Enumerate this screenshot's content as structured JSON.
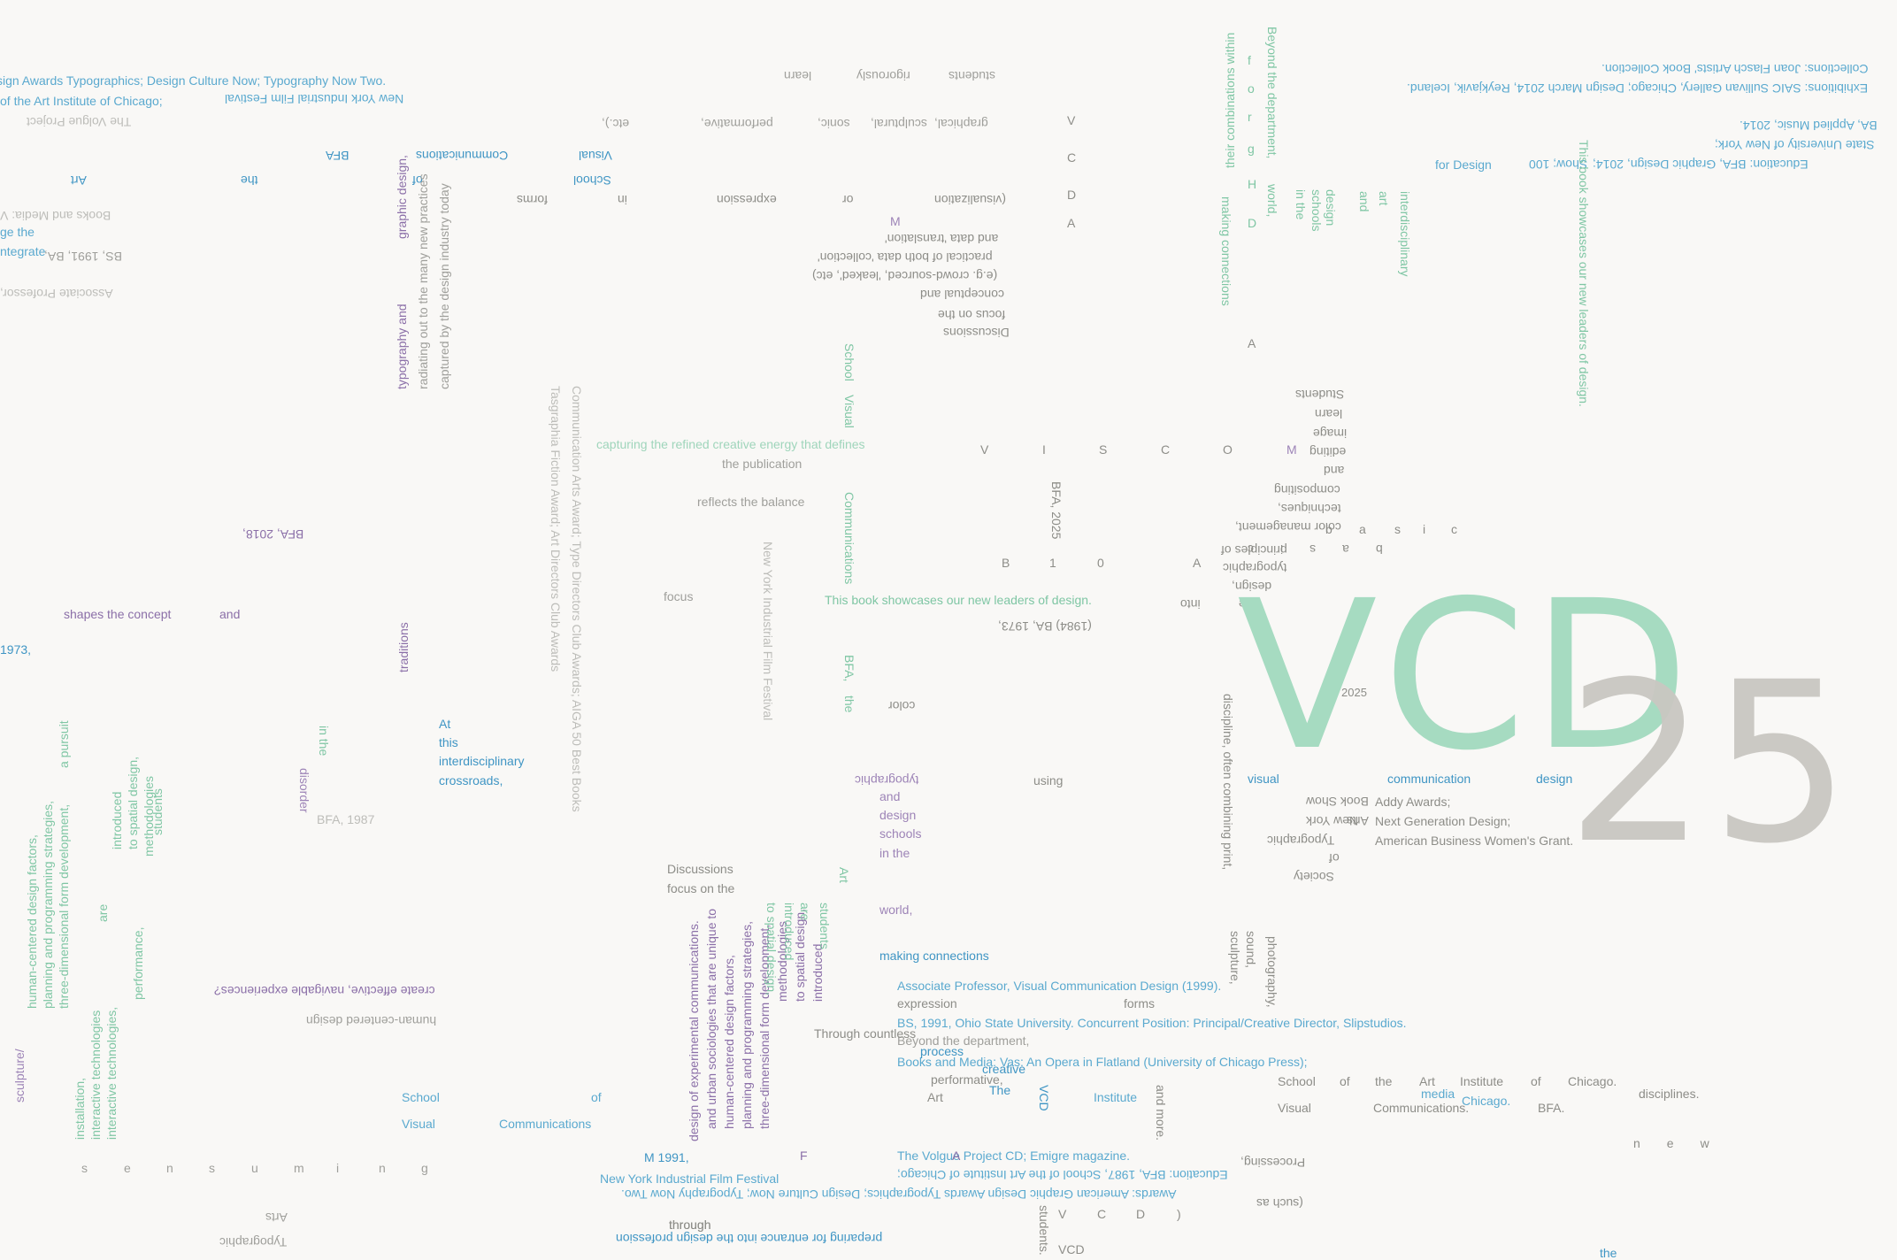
{
  "logo": {
    "main": "VCD",
    "number": "25",
    "year": "2025"
  },
  "colors": {
    "background": "#f9f8f6",
    "blue": "#5aa9cf",
    "green": "#9fd5bb",
    "purple": "#9d84b7",
    "gray": "#bdbdb9"
  },
  "texts": [
    "sign Awards Typographics; Design Culture Now; Typography Now Two.",
    "of the Art Institute of Chicago;",
    "New York Industrial Film Festival",
    "ge the",
    "ntegrate",
    "BS, 1991, BA,",
    "Associate Professor,",
    "Books and Media: V",
    "The Volgue Project",
    "students",
    "rigorously",
    "learn",
    "graphical,",
    "sculptural,",
    "sonic,",
    "performative,",
    "etc.),",
    "Visual",
    "Communications",
    "BFA",
    "Art",
    "the",
    "School",
    "of",
    "in",
    "forms",
    "expression",
    "or",
    "(visualization",
    "(e.g. crowd-sourced, 'leaked', etc)",
    "and data 'translation'",
    "practical of both data 'collection'",
    "conceptual and",
    "focus on the",
    "Discussions",
    "M",
    "Collections: Joan Flasch Artists' Book Collection.",
    "Exhibitions: SAIC Sullivan Gallery, Chicago; Design March 2014, Reykjavik, Iceland.",
    "BA, Applied Music, 2014.",
    "State University of New York;",
    "Education: BFA, Graphic Design, 2014;",
    "Show; 100",
    "for Design",
    "This book showcases our new leaders of design.",
    "Beyond the department,",
    "world,",
    "their combinations within",
    "making connections",
    "interdisciplinary",
    "and",
    "art",
    "design",
    "schools",
    "in the",
    "graphic design,",
    "typography and",
    "radiating out to the many new practices",
    "captured by the design industry today",
    "Students",
    "learn",
    "image",
    "editing",
    "and",
    "compositing",
    "techniques,",
    "color management,",
    "basic",
    "principles of",
    "typographic",
    "design,",
    "the",
    "into",
    "focus",
    "BFA, 2018,",
    "shapes the concept",
    "and",
    "traditions",
    "capturing the refined creative energy that defines",
    "the publication",
    "reflects the balance",
    "School",
    "Visual",
    "Communications",
    "This book showcases our new leaders of design.",
    "BFA,",
    "the",
    "color",
    "BFA, 2025",
    "(1984) BA, 1973,",
    "New York Industrial Film Festival",
    "Communication Arts Award; Type Directors Club Awards; AIGA 50 Best Books",
    "Tasgraphia Fiction Award; Art Directors Club Awards",
    "At",
    "this",
    "interdisciplinary",
    "crossroads,",
    "BFA, 1987",
    "disorder",
    "in the",
    "typographic",
    "and",
    "design",
    "schools",
    "in the",
    "world,",
    "making connections",
    "using",
    "visual",
    "communication",
    "design",
    "Addy Awards;",
    "Next Generation Design;",
    "American Business Women's Grant.",
    "Book Show",
    "Arts",
    "New York",
    "Typographic",
    "of",
    "Society",
    "discipline, often combining print,",
    "sculpture,",
    "sound,",
    "photography,",
    "create effective, navigable experiences?",
    "human-centered design",
    "Discussions",
    "focus on the",
    "introduced",
    "to spatial design,",
    "methodologies",
    "three-dimensional form development,",
    "planning and programming strategies,",
    "human-centered design factors,",
    "and urban sociologies that are unique to",
    "design of experimental communications.",
    "Art",
    "students",
    "are",
    "introduced",
    "to spatial design,",
    "Associate Professor, Visual Communication Design (1999).",
    "BS, 1991, Ohio State University. Concurrent Position: Principal/Creative Director, Slipstudios.",
    "Books and Media: Vas: An Opera in Flatland (University of Chicago Press);",
    "The Volgue Project CD; Emigre magazine.",
    "Education: BFA, 1987, School of the Art Institute of Chicago;",
    "Awards: American Graphic Design Awards Typographics; Design Culture Now; Typography Now Two.",
    "New York Industrial Film Festival",
    "through",
    "preparing for entrance into the design profession",
    "M 1991,",
    "F",
    "A",
    "expression",
    "forms",
    "Beyond the department,",
    "process",
    "creative",
    "performative,",
    "The",
    "Art",
    "VCD",
    "Institute",
    "and more.",
    "School",
    "of",
    "the",
    "Art",
    "Institute",
    "of",
    "Chicago.",
    "media",
    "Chicago.",
    "disciplines.",
    "Visual",
    "Communications.",
    "BFA.",
    "School",
    "Visual",
    "of",
    "Communications",
    "Processing,",
    "(such as",
    "the",
    "new",
    "Typographic",
    "Arts",
    "students.",
    "VCD",
    "installation,",
    "interactive technologies",
    "a pursuit",
    "sculpture/",
    "three-dimensional form development,",
    "planning and programming strategies,",
    "human-centered design factors,",
    "introduced",
    "to spatial design,",
    "methodologies",
    "performance,",
    "students",
    "are",
    "interactive technologies,",
    "1973,",
    "Through countless",
    "through"
  ],
  "spaced_letters": {
    "row1": [
      "V",
      "I",
      "S",
      "C"
    ],
    "row2": [
      "B",
      "1",
      "0",
      "A"
    ],
    "row3": [
      "b",
      "a",
      "s",
      "i",
      "c"
    ],
    "row4": [
      "V",
      "C",
      "D",
      ")"
    ],
    "row5": [
      "n",
      "e",
      "w"
    ],
    "row6": [
      "s",
      "e",
      "n",
      "s",
      "u",
      "m",
      "i",
      "n",
      "g"
    ],
    "col1": [
      "f",
      "o",
      "r",
      "g",
      "H",
      "D"
    ],
    "col2": [
      "V",
      "C",
      "D",
      "A"
    ],
    "col3": [
      "O",
      "A",
      "M"
    ]
  }
}
